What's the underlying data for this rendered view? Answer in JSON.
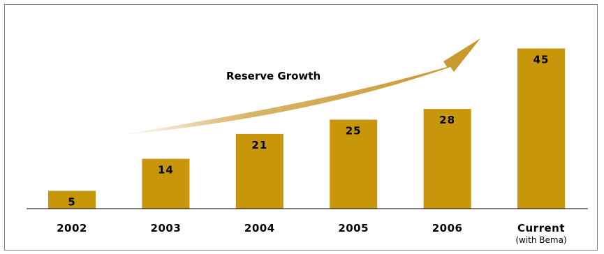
{
  "chart_data": {
    "type": "bar",
    "categories": [
      "2002",
      "2003",
      "2004",
      "2005",
      "2006",
      "Current"
    ],
    "category_sublabels": [
      "",
      "",
      "",
      "",
      "",
      "(with Bema)"
    ],
    "values": [
      5,
      14,
      21,
      25,
      28,
      45
    ],
    "value_labels": [
      "5",
      "14",
      "21",
      "25",
      "28",
      "45"
    ],
    "annotation": "Reserve Growth",
    "title": "",
    "xlabel": "",
    "ylabel": "",
    "ylim": [
      0,
      50
    ],
    "grid": false,
    "legend": "none",
    "colors": {
      "bar": "#C8960A",
      "arrow": "#C8962A",
      "axis": "#000000",
      "frame": "#808080"
    }
  }
}
